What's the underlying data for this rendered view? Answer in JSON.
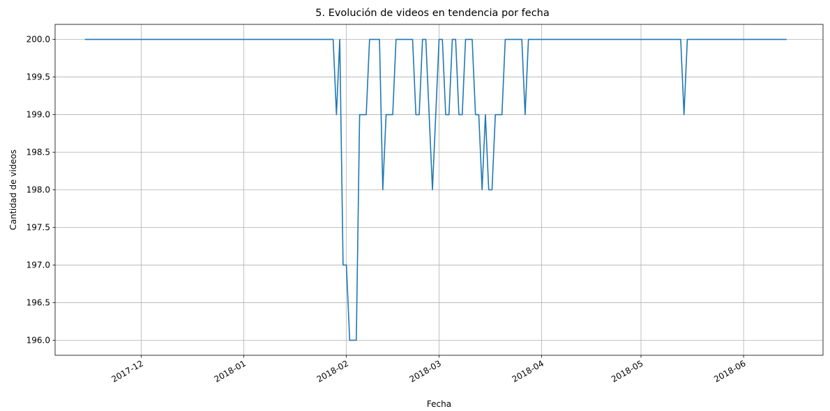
{
  "chart_data": {
    "type": "line",
    "title": "5. Evolución de videos en tendencia por fecha",
    "xlabel": "Fecha",
    "ylabel": "Cantidad de videos",
    "x_type": "date",
    "xlim": [
      "2017-11-05",
      "2018-06-25"
    ],
    "ylim": [
      195.8,
      200.2
    ],
    "yticks": [
      196.0,
      196.5,
      197.0,
      197.5,
      198.0,
      198.5,
      199.0,
      199.5,
      200.0
    ],
    "ytick_labels": [
      "196.0",
      "196.5",
      "197.0",
      "197.5",
      "198.0",
      "198.5",
      "199.0",
      "199.5",
      "200.0"
    ],
    "xticks": [
      "2017-12-01",
      "2018-01-01",
      "2018-02-01",
      "2018-03-01",
      "2018-04-01",
      "2018-05-01",
      "2018-06-01"
    ],
    "xtick_labels": [
      "2017-12",
      "2018-01",
      "2018-02",
      "2018-03",
      "2018-04",
      "2018-05",
      "2018-06"
    ],
    "grid": true,
    "line_color": "#1f77b4",
    "series": [
      {
        "points": [
          [
            "2017-11-14",
            200
          ],
          [
            "2018-01-28",
            200
          ],
          [
            "2018-01-29",
            199
          ],
          [
            "2018-01-30",
            200
          ],
          [
            "2018-01-31",
            197
          ],
          [
            "2018-02-01",
            197
          ],
          [
            "2018-02-02",
            196
          ],
          [
            "2018-02-04",
            196
          ],
          [
            "2018-02-05",
            199
          ],
          [
            "2018-02-07",
            199
          ],
          [
            "2018-02-08",
            200
          ],
          [
            "2018-02-11",
            200
          ],
          [
            "2018-02-12",
            198
          ],
          [
            "2018-02-13",
            199
          ],
          [
            "2018-02-15",
            199
          ],
          [
            "2018-02-16",
            200
          ],
          [
            "2018-02-21",
            200
          ],
          [
            "2018-02-22",
            199
          ],
          [
            "2018-02-23",
            199
          ],
          [
            "2018-02-24",
            200
          ],
          [
            "2018-02-25",
            200
          ],
          [
            "2018-02-27",
            198
          ],
          [
            "2018-02-28",
            199
          ],
          [
            "2018-03-01",
            200
          ],
          [
            "2018-03-02",
            200
          ],
          [
            "2018-03-03",
            199
          ],
          [
            "2018-03-04",
            199
          ],
          [
            "2018-03-05",
            200
          ],
          [
            "2018-03-06",
            200
          ],
          [
            "2018-03-07",
            199
          ],
          [
            "2018-03-08",
            199
          ],
          [
            "2018-03-09",
            200
          ],
          [
            "2018-03-11",
            200
          ],
          [
            "2018-03-12",
            199
          ],
          [
            "2018-03-13",
            199
          ],
          [
            "2018-03-14",
            198
          ],
          [
            "2018-03-15",
            199
          ],
          [
            "2018-03-16",
            198
          ],
          [
            "2018-03-17",
            198
          ],
          [
            "2018-03-18",
            199
          ],
          [
            "2018-03-20",
            199
          ],
          [
            "2018-03-21",
            200
          ],
          [
            "2018-03-26",
            200
          ],
          [
            "2018-03-27",
            199
          ],
          [
            "2018-03-28",
            200
          ],
          [
            "2018-05-13",
            200
          ],
          [
            "2018-05-14",
            199
          ],
          [
            "2018-05-15",
            200
          ],
          [
            "2018-06-14",
            200
          ]
        ]
      }
    ]
  }
}
